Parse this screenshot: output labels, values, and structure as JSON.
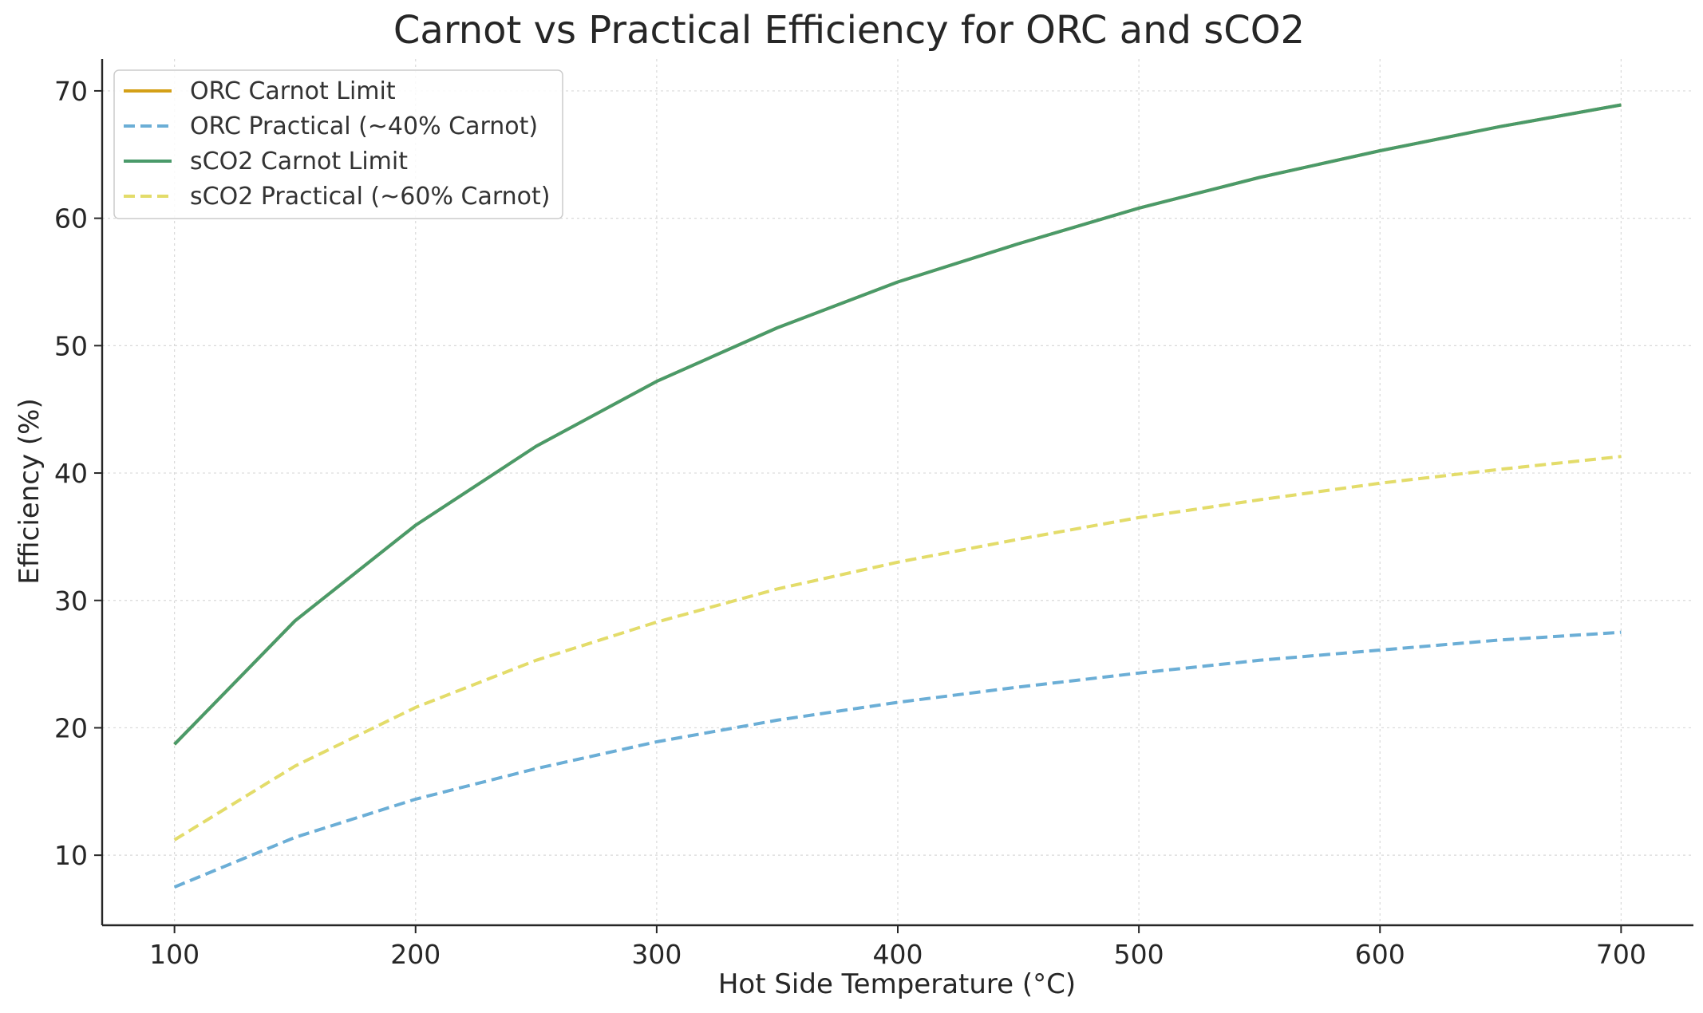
{
  "chart_data": {
    "type": "line",
    "title": "Carnot vs Practical Efficiency for ORC and sCO2",
    "xlabel": "Hot Side Temperature (°C)",
    "ylabel": "Efficiency (%)",
    "x": [
      100,
      150,
      200,
      250,
      300,
      350,
      400,
      450,
      500,
      550,
      600,
      650,
      700
    ],
    "xlim": [
      70,
      730
    ],
    "ylim": [
      4.5,
      72.5
    ],
    "xticks": [
      100,
      200,
      300,
      400,
      500,
      600,
      700
    ],
    "yticks": [
      10,
      20,
      30,
      40,
      50,
      60,
      70
    ],
    "grid": true,
    "legend_position": "top-left",
    "series": [
      {
        "name": "ORC Carnot Limit",
        "color": "#d4a017",
        "style": "solid",
        "values": [
          18.7,
          28.4,
          35.9,
          42.1,
          47.2,
          51.4,
          55.0,
          58.0,
          60.8,
          63.2,
          65.3,
          67.2,
          68.9
        ]
      },
      {
        "name": "ORC Practical (~40% Carnot)",
        "color": "#6baed6",
        "style": "dashed",
        "values": [
          7.5,
          11.4,
          14.4,
          16.8,
          18.9,
          20.6,
          22.0,
          23.2,
          24.3,
          25.3,
          26.1,
          26.9,
          27.5
        ]
      },
      {
        "name": "sCO2 Carnot Limit",
        "color": "#4a9a6a",
        "style": "solid",
        "values": [
          18.7,
          28.4,
          35.9,
          42.1,
          47.2,
          51.4,
          55.0,
          58.0,
          60.8,
          63.2,
          65.3,
          67.2,
          68.9
        ]
      },
      {
        "name": "sCO2 Practical (~60% Carnot)",
        "color": "#e3dc6a",
        "style": "dashed",
        "values": [
          11.2,
          17.0,
          21.6,
          25.3,
          28.3,
          30.9,
          33.0,
          34.8,
          36.5,
          37.9,
          39.2,
          40.3,
          41.3
        ]
      }
    ]
  }
}
